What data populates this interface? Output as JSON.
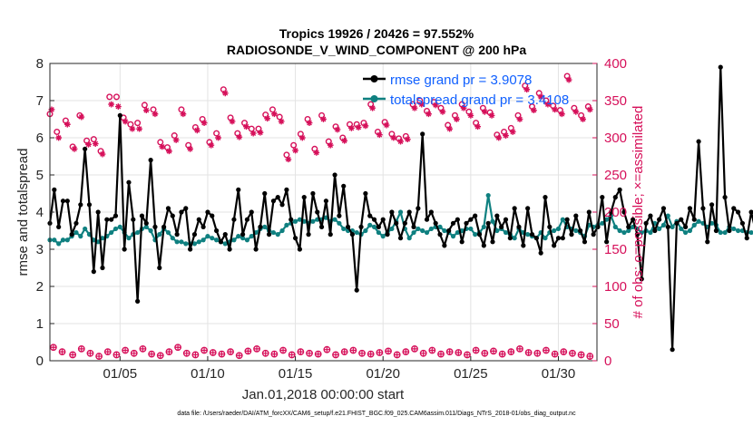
{
  "chart_data": {
    "type": "line",
    "title_line1": "Tropics 19926 / 20426 = 97.552%",
    "title_line2": "RADIOSONDE_V_WIND_COMPONENT @ 200 hPa",
    "xlabel": "Jan.01,2018 00:00:00 start",
    "ylabel_left": "rmse and totalspread",
    "ylabel_right": "# of obs: o=possible; ×=assimilated",
    "ylim_left": [
      0,
      8
    ],
    "ylim_right": [
      0,
      400
    ],
    "xlim": [
      1,
      32.2
    ],
    "x_ticks": [
      5,
      10,
      15,
      20,
      25,
      30
    ],
    "x_tick_labels": [
      "01/05",
      "01/10",
      "01/15",
      "01/20",
      "01/25",
      "01/30"
    ],
    "y_ticks_left": [
      "0",
      "1",
      "2",
      "3",
      "4",
      "5",
      "6",
      "7",
      "8"
    ],
    "y_ticks_right": [
      "0",
      "50",
      "100",
      "150",
      "200",
      "250",
      "300",
      "350",
      "400"
    ],
    "x_start": 1.0,
    "x_step": 0.25,
    "series": [
      {
        "name": "rmse grand pr = 3.9078",
        "axis": "left",
        "color": "#000000",
        "marker": "dot",
        "values": [
          3.7,
          4.6,
          3.6,
          4.3,
          4.3,
          3.4,
          3.7,
          4.2,
          5.7,
          4.2,
          2.4,
          4.0,
          2.5,
          3.8,
          3.8,
          3.9,
          6.6,
          3.0,
          4.8,
          3.8,
          1.6,
          3.9,
          3.7,
          5.4,
          3.6,
          2.5,
          3.6,
          4.1,
          3.9,
          3.4,
          4.0,
          4.1,
          3.0,
          3.4,
          3.8,
          3.6,
          4.0,
          3.9,
          3.5,
          3.2,
          3.4,
          3.0,
          3.8,
          4.6,
          3.4,
          3.8,
          4.0,
          3.0,
          3.6,
          4.5,
          3.4,
          4.3,
          4.4,
          4.2,
          4.6,
          3.8,
          3.3,
          3.0,
          4.4,
          3.4,
          4.5,
          4.0,
          3.6,
          4.3,
          3.4,
          5.0,
          3.9,
          4.7,
          3.6,
          3.4,
          1.9,
          3.6,
          4.5,
          3.9,
          3.8,
          3.6,
          3.8,
          3.4,
          4.0,
          3.7,
          3.3,
          3.7,
          4.0,
          3.6,
          4.1,
          6.1,
          3.8,
          4.0,
          3.7,
          3.4,
          3.1,
          3.5,
          3.7,
          3.8,
          3.2,
          3.7,
          3.8,
          3.9,
          3.4,
          3.1,
          3.7,
          3.2,
          3.9,
          3.6,
          3.8,
          3.3,
          4.1,
          3.6,
          3.1,
          4.1,
          3.4,
          3.3,
          2.9,
          4.4,
          3.6,
          3.1,
          3.3,
          3.3,
          3.8,
          3.4,
          3.9,
          3.5,
          3.2,
          4.0,
          3.4,
          3.6,
          4.4,
          3.2,
          4.0,
          4.4,
          4.6,
          4.0,
          3.6,
          3.8,
          3.4,
          2.2,
          3.7,
          3.9,
          3.5,
          3.8,
          4.1,
          3.6,
          0.3,
          3.7,
          3.8,
          3.6,
          4.1,
          3.8,
          5.9,
          4.1,
          3.2,
          4.2,
          3.5,
          7.9,
          4.4,
          3.5,
          4.1,
          4.0,
          3.7,
          3.3,
          4.0,
          3.5,
          3.8,
          3.7,
          4.1
        ]
      },
      {
        "name": "totalspread grand pr = 3.4108",
        "axis": "left",
        "color": "#0f8080",
        "marker": "dot",
        "values": [
          3.25,
          3.25,
          3.15,
          3.25,
          3.25,
          3.35,
          3.45,
          3.35,
          3.55,
          3.4,
          3.25,
          3.2,
          3.3,
          3.35,
          3.45,
          3.55,
          3.6,
          3.45,
          3.3,
          3.4,
          3.45,
          3.55,
          3.6,
          3.5,
          3.25,
          3.4,
          3.55,
          3.45,
          3.3,
          3.2,
          3.2,
          3.15,
          3.15,
          3.15,
          3.2,
          3.25,
          3.35,
          3.3,
          3.25,
          3.2,
          3.15,
          3.2,
          3.25,
          3.35,
          3.3,
          3.25,
          3.35,
          3.45,
          3.55,
          3.6,
          3.5,
          3.45,
          3.4,
          3.5,
          3.65,
          3.7,
          3.75,
          3.8,
          3.75,
          3.7,
          3.75,
          3.8,
          3.8,
          3.85,
          3.75,
          3.8,
          3.7,
          3.55,
          3.5,
          3.5,
          3.45,
          3.4,
          3.5,
          3.65,
          3.6,
          3.45,
          3.35,
          3.45,
          3.55,
          3.75,
          4.0,
          3.55,
          3.3,
          3.45,
          3.55,
          3.5,
          3.45,
          3.55,
          3.6,
          3.6,
          3.5,
          3.45,
          3.35,
          3.45,
          3.5,
          3.55,
          3.55,
          3.4,
          3.45,
          3.6,
          4.45,
          3.75,
          3.5,
          3.55,
          3.45,
          3.4,
          3.3,
          3.55,
          3.45,
          3.4,
          3.35,
          3.3,
          3.45,
          3.3,
          3.45,
          3.5,
          3.55,
          3.8,
          3.6,
          3.55,
          3.5,
          3.45,
          3.35,
          3.65,
          3.6,
          3.65,
          3.7,
          3.8,
          3.9,
          3.6,
          3.5,
          3.45,
          3.5,
          3.6,
          3.55,
          3.45,
          3.5,
          3.45,
          3.7,
          3.55,
          3.65,
          3.9,
          3.6,
          3.75,
          3.55,
          3.45,
          3.5,
          3.65,
          3.75,
          3.7,
          3.6,
          3.7,
          3.65,
          3.45,
          3.45,
          3.6,
          3.55,
          3.5,
          3.5,
          3.45,
          3.45
        ]
      }
    ],
    "obs_possible": {
      "name": "possible",
      "axis": "right",
      "color": "#d6105a",
      "marker": "circle",
      "days": [
        1.0,
        1.4,
        1.9,
        2.3,
        2.7,
        3.1,
        3.5,
        3.9,
        4.4,
        4.8,
        5.2,
        5.6,
        6.0,
        6.4,
        6.9,
        7.3,
        7.7,
        8.1,
        8.5,
        8.9,
        9.3,
        9.7,
        10.1,
        10.5,
        10.9,
        11.3,
        11.7,
        12.1,
        12.5,
        12.9,
        13.3,
        13.7,
        14.1,
        14.5,
        14.9,
        15.3,
        15.7,
        16.1,
        16.5,
        16.9,
        17.3,
        17.7,
        18.1,
        18.5,
        18.9,
        19.3,
        19.7,
        20.1,
        20.5,
        20.9,
        21.3,
        21.7,
        22.1,
        22.5,
        22.9,
        23.3,
        23.7,
        24.1,
        24.5,
        24.9,
        25.3,
        25.7,
        26.1,
        26.5,
        26.9,
        27.3,
        27.7,
        28.1,
        28.5,
        28.9,
        29.3,
        29.7,
        30.1,
        30.5,
        30.9,
        31.3,
        31.7
      ],
      "values": [
        332,
        308,
        323,
        288,
        330,
        296,
        298,
        282,
        355,
        355,
        327,
        318,
        320,
        344,
        338,
        294,
        287,
        303,
        338,
        290,
        314,
        325,
        294,
        306,
        365,
        327,
        306,
        320,
        312,
        312,
        331,
        338,
        328,
        277,
        290,
        305,
        325,
        285,
        330,
        295,
        315,
        300,
        318,
        318,
        320,
        345,
        308,
        321,
        305,
        299,
        302,
        345,
        350,
        336,
        348,
        340,
        317,
        330,
        345,
        335,
        320,
        340,
        334,
        304,
        308,
        313,
        330,
        370,
        342,
        360,
        350,
        343,
        337,
        383,
        340,
        330,
        342
      ],
      "rmse_grand": "3.9078",
      "spread_grand": "3.4108"
    },
    "obs_assimilated": {
      "name": "assimilated",
      "axis": "right",
      "color": "#d6105a",
      "marker": "asterisk",
      "days": [
        1.1,
        1.5,
        2.0,
        2.4,
        2.8,
        3.2,
        3.6,
        4.0,
        4.5,
        4.9,
        5.3,
        5.7,
        6.1,
        6.5,
        7.0,
        7.4,
        7.8,
        8.2,
        8.6,
        9.0,
        9.4,
        9.8,
        10.2,
        10.6,
        11.0,
        11.4,
        11.8,
        12.2,
        12.6,
        13.0,
        13.4,
        13.8,
        14.2,
        14.6,
        15.0,
        15.4,
        15.8,
        16.2,
        16.6,
        17.0,
        17.4,
        17.8,
        18.2,
        18.6,
        19.0,
        19.4,
        19.8,
        20.2,
        20.6,
        21.0,
        21.4,
        21.8,
        22.2,
        22.6,
        23.0,
        23.4,
        23.8,
        24.2,
        24.6,
        25.0,
        25.4,
        25.8,
        26.2,
        26.6,
        27.0,
        27.4,
        27.8,
        28.2,
        28.6,
        29.0,
        29.4,
        29.8,
        30.2,
        30.6,
        31.0,
        31.4,
        31.8
      ],
      "values": [
        338,
        300,
        318,
        285,
        328,
        291,
        292,
        278,
        345,
        342,
        322,
        312,
        312,
        337,
        332,
        288,
        282,
        297,
        332,
        285,
        310,
        320,
        290,
        300,
        360,
        322,
        301,
        315,
        306,
        307,
        326,
        332,
        322,
        271,
        283,
        300,
        320,
        280,
        325,
        290,
        311,
        296,
        313,
        314,
        316,
        340,
        304,
        317,
        300,
        295,
        298,
        340,
        345,
        332,
        344,
        335,
        312,
        325,
        340,
        330,
        315,
        335,
        330,
        300,
        303,
        308,
        325,
        365,
        337,
        355,
        345,
        338,
        332,
        378,
        335,
        325,
        338
      ]
    },
    "obs_bottom_markers": {
      "name": "low counts",
      "axis": "right",
      "color": "#d6105a",
      "days": [
        1.2,
        1.7,
        2.3,
        2.8,
        3.3,
        3.8,
        4.3,
        4.8,
        5.3,
        5.8,
        6.3,
        6.8,
        7.3,
        7.8,
        8.3,
        8.8,
        9.3,
        9.8,
        10.3,
        10.8,
        11.3,
        11.8,
        12.3,
        12.8,
        13.3,
        13.8,
        14.3,
        14.8,
        15.3,
        15.8,
        16.3,
        16.8,
        17.3,
        17.8,
        18.3,
        18.8,
        19.3,
        19.8,
        20.3,
        20.8,
        21.3,
        21.8,
        22.3,
        22.8,
        23.3,
        23.8,
        24.3,
        24.8,
        25.3,
        25.8,
        26.3,
        26.8,
        27.3,
        27.8,
        28.3,
        28.8,
        29.3,
        29.8,
        30.3,
        30.8,
        31.3,
        31.8
      ],
      "values": [
        18,
        12,
        8,
        16,
        10,
        6,
        12,
        8,
        14,
        10,
        16,
        9,
        7,
        12,
        18,
        10,
        8,
        14,
        11,
        9,
        12,
        7,
        13,
        16,
        10,
        9,
        14,
        8,
        12,
        10,
        9,
        15,
        8,
        12,
        14,
        10,
        9,
        11,
        13,
        8,
        12,
        16,
        10,
        14,
        9,
        12,
        11,
        8,
        14,
        10,
        13,
        9,
        12,
        16,
        11,
        10,
        14,
        9,
        12,
        10,
        8,
        6
      ]
    },
    "legend": [
      "rmse grand pr = 3.9078",
      "totalspread grand pr = 3.4108"
    ],
    "legend_location": "top-right",
    "grid": true
  },
  "footer": "data file: /Users/raeder/DAI/ATM_forcXX/CAM6_setup/f.e21.FHIST_BGC.f09_025.CAM6assim.011/Diags_NTrS_2018-01/obs_diag_output.nc"
}
